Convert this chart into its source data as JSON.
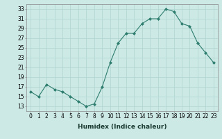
{
  "x": [
    0,
    1,
    2,
    3,
    4,
    5,
    6,
    7,
    8,
    9,
    10,
    11,
    12,
    13,
    14,
    15,
    16,
    17,
    18,
    19,
    20,
    21,
    22,
    23
  ],
  "y": [
    16,
    15,
    17.5,
    16.5,
    16,
    15,
    14,
    13,
    13.5,
    17,
    22,
    26,
    28,
    28,
    30,
    31,
    31,
    33,
    32.5,
    30,
    29.5,
    26,
    24,
    22
  ],
  "line_color": "#2e7d6e",
  "marker": "D",
  "marker_size": 2,
  "bg_color": "#cce9e5",
  "grid_color": "#b0d4d0",
  "xlabel": "Humidex (Indice chaleur)",
  "ylim": [
    12,
    34
  ],
  "xlim": [
    -0.5,
    23.5
  ],
  "yticks": [
    13,
    15,
    17,
    19,
    21,
    23,
    25,
    27,
    29,
    31,
    33
  ],
  "xticks": [
    0,
    1,
    2,
    3,
    4,
    5,
    6,
    7,
    8,
    9,
    10,
    11,
    12,
    13,
    14,
    15,
    16,
    17,
    18,
    19,
    20,
    21,
    22,
    23
  ],
  "xtick_labels": [
    "0",
    "1",
    "2",
    "3",
    "4",
    "5",
    "6",
    "7",
    "8",
    "9",
    "10",
    "11",
    "12",
    "13",
    "14",
    "15",
    "16",
    "17",
    "18",
    "19",
    "20",
    "21",
    "22",
    "23"
  ],
  "xlabel_fontsize": 6.5,
  "tick_fontsize": 5.5,
  "line_width": 0.8
}
